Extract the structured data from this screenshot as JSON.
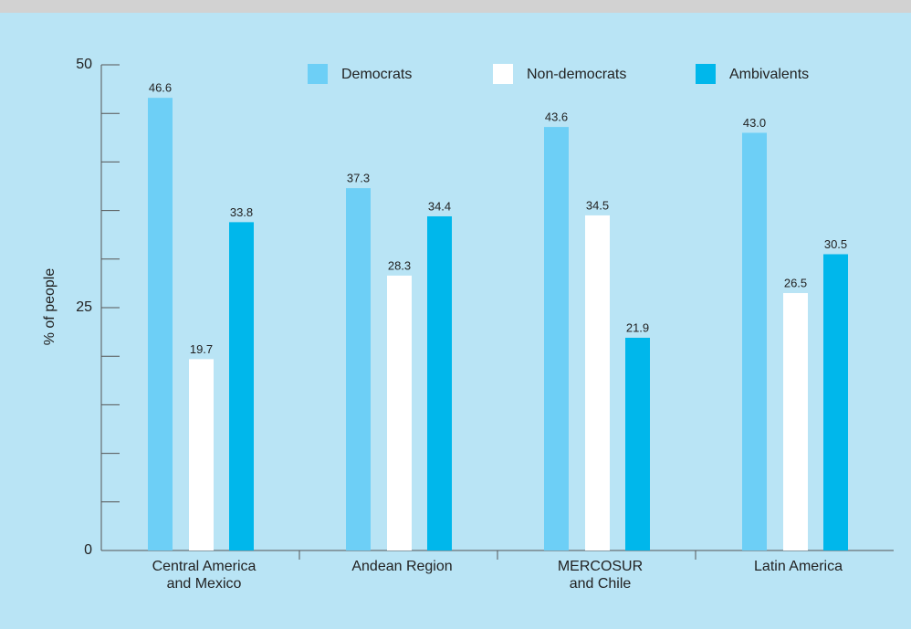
{
  "chart_data": {
    "type": "bar",
    "y_label": "% of people",
    "categories": [
      "Central America\nand Mexico",
      "Andean Region",
      "MERCOSUR\nand Chile",
      "Latin America"
    ],
    "series": [
      {
        "name": "Democrats",
        "color": "#6dcff6",
        "values": [
          46.6,
          37.3,
          43.6,
          43.0
        ],
        "value_labels": [
          "46.6",
          "37.3",
          "43.6",
          "43.0"
        ]
      },
      {
        "name": "Non-democrats",
        "color": "#ffffff",
        "values": [
          19.7,
          28.3,
          34.5,
          26.5
        ],
        "value_labels": [
          "19.7",
          "28.3",
          "34.5",
          "26.5"
        ]
      },
      {
        "name": "Ambivalents",
        "color": "#00b7eb",
        "values": [
          33.8,
          34.4,
          21.9,
          30.5
        ],
        "value_labels": [
          "33.8",
          "34.4",
          "21.9",
          "30.5"
        ]
      }
    ],
    "ylim": [
      0,
      50
    ],
    "yticks": [
      0,
      25,
      50
    ],
    "minor_yticks": [
      5,
      10,
      15,
      20,
      30,
      35,
      40,
      45
    ],
    "legend": "top"
  }
}
